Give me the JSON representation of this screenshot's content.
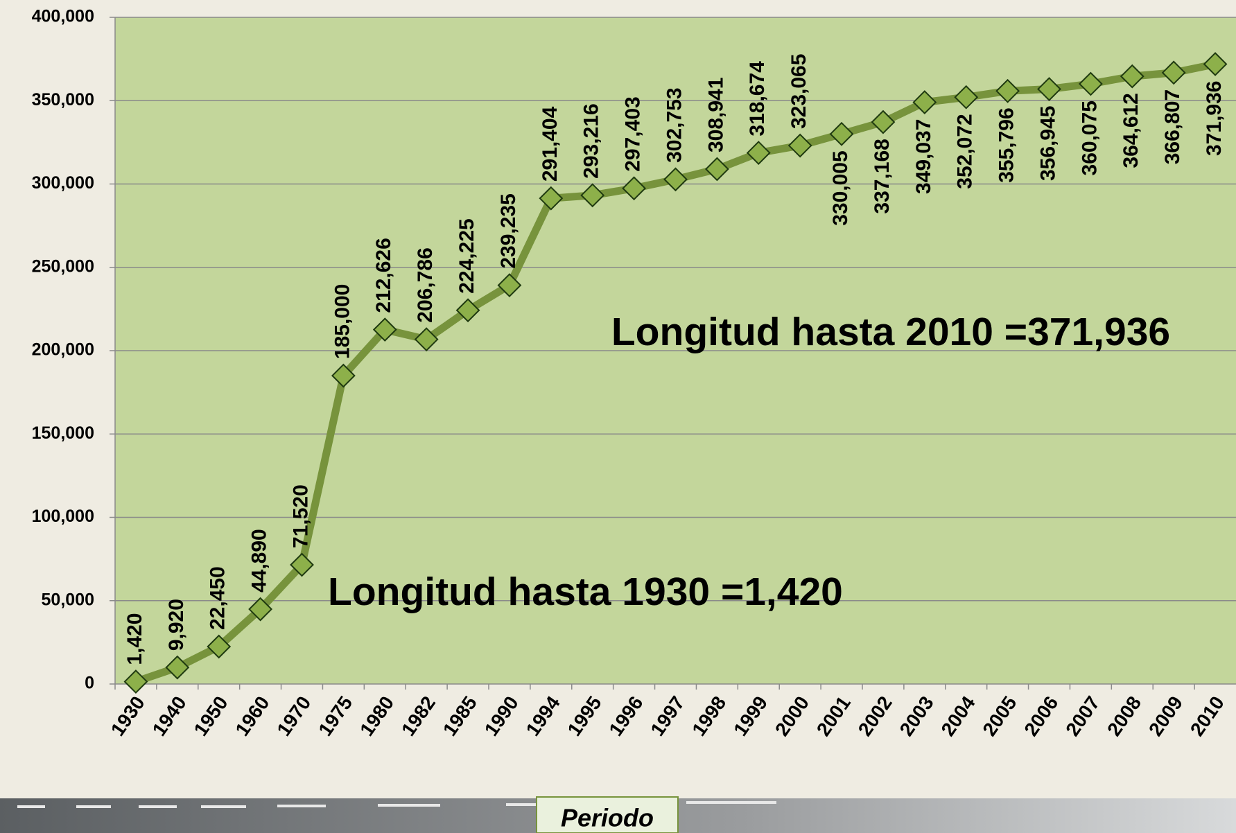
{
  "chart_data": {
    "type": "line",
    "categories": [
      "1930",
      "1940",
      "1950",
      "1960",
      "1970",
      "1975",
      "1980",
      "1982",
      "1985",
      "1990",
      "1994",
      "1995",
      "1996",
      "1997",
      "1998",
      "1999",
      "2000",
      "2001",
      "2002",
      "2003",
      "2004",
      "2005",
      "2006",
      "2007",
      "2008",
      "2009",
      "2010"
    ],
    "values": [
      1420,
      9920,
      22450,
      44890,
      71520,
      185000,
      212626,
      206786,
      224225,
      239235,
      291404,
      293216,
      297403,
      302753,
      308941,
      318674,
      323065,
      330005,
      337168,
      349037,
      352072,
      355796,
      356945,
      360075,
      364612,
      366807,
      371936
    ],
    "value_labels": [
      "1,420",
      "9,920",
      "22,450",
      "44,890",
      "71,520",
      "185,000",
      "212,626",
      "206,786",
      "224,225",
      "239,235",
      "291,404",
      "293,216",
      "297,403",
      "302,753",
      "308,941",
      "318,674",
      "323,065",
      "330,005",
      "337,168",
      "349,037",
      "352,072",
      "355,796",
      "356,945",
      "360,075",
      "364,612",
      "366,807",
      "371,936"
    ],
    "color": "#77933c",
    "ylim": [
      0,
      400000
    ],
    "yticks": [
      {
        "value": 0,
        "label": "0"
      },
      {
        "value": 50000,
        "label": "50,000"
      },
      {
        "value": 100000,
        "label": "100,000"
      },
      {
        "value": 150000,
        "label": "150,000"
      },
      {
        "value": 200000,
        "label": "200,000"
      },
      {
        "value": 250000,
        "label": "250,000"
      },
      {
        "value": 300000,
        "label": "300,000"
      },
      {
        "value": 350000,
        "label": "350,000"
      },
      {
        "value": 400000,
        "label": "400,000"
      }
    ],
    "grid": true,
    "x_label": "Periodo",
    "annotations": [
      "Longitud hasta 2010 =371,936",
      "Longitud hasta 1930 =1,420"
    ]
  }
}
